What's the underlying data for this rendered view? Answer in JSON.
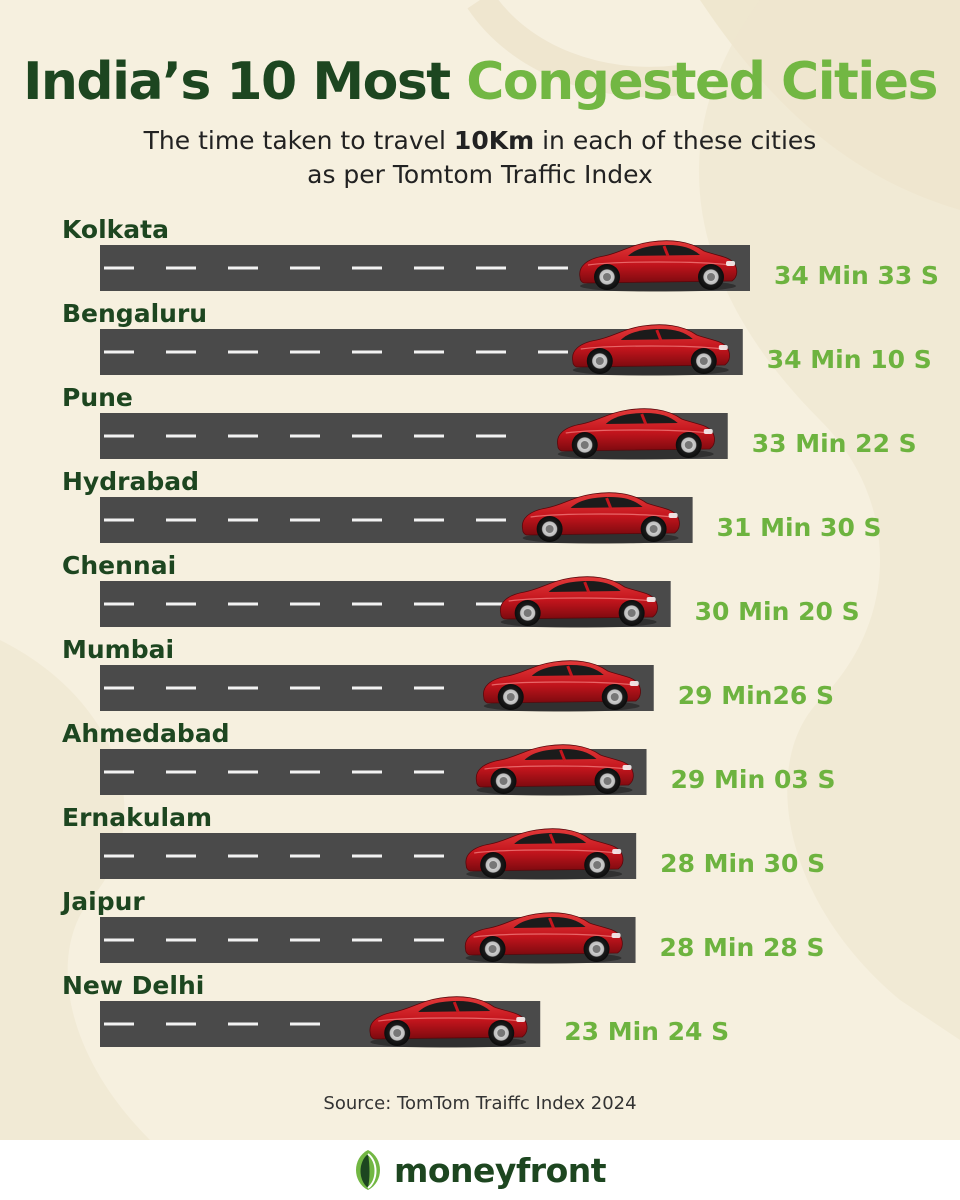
{
  "title_part1": "India’s 10 Most",
  "title_part2": "Congested Cities",
  "subtitle_pre": "The time taken to travel",
  "subtitle_bold": "10Km",
  "subtitle_post": "in each of these cities",
  "subtitle_line2": "as per Tomtom Traffic Index",
  "source": "Source: TomTom Traiffc Index 2024",
  "brand": "moneyfront",
  "colors": {
    "background": "#f6f0df",
    "title_dark": "#1d4620",
    "title_green": "#72b743",
    "road": "#4a4a4a",
    "car": "#c4151d",
    "time_text": "#6db33f"
  },
  "chart_data": {
    "type": "bar",
    "orientation": "horizontal",
    "unit": "seconds",
    "categories": [
      "Kolkata",
      "Bengaluru",
      "Pune",
      "Hydrabad",
      "Chennai",
      "Mumbai",
      "Ahmedabad",
      "Ernakulam",
      "Jaipur",
      "New Delhi"
    ],
    "values": [
      2073,
      2050,
      2002,
      1890,
      1820,
      1766,
      1743,
      1710,
      1708,
      1404
    ],
    "value_labels": [
      "34 Min 33 S",
      "34 Min 10 S",
      "33 Min 22 S",
      "31 Min 30 S",
      "30 Min 20 S",
      "29 Min26 S",
      "29 Min 03 S",
      "28 Min 30 S",
      "28 Min 28 S",
      "23 Min 24 S"
    ],
    "mark": "road-with-car"
  }
}
